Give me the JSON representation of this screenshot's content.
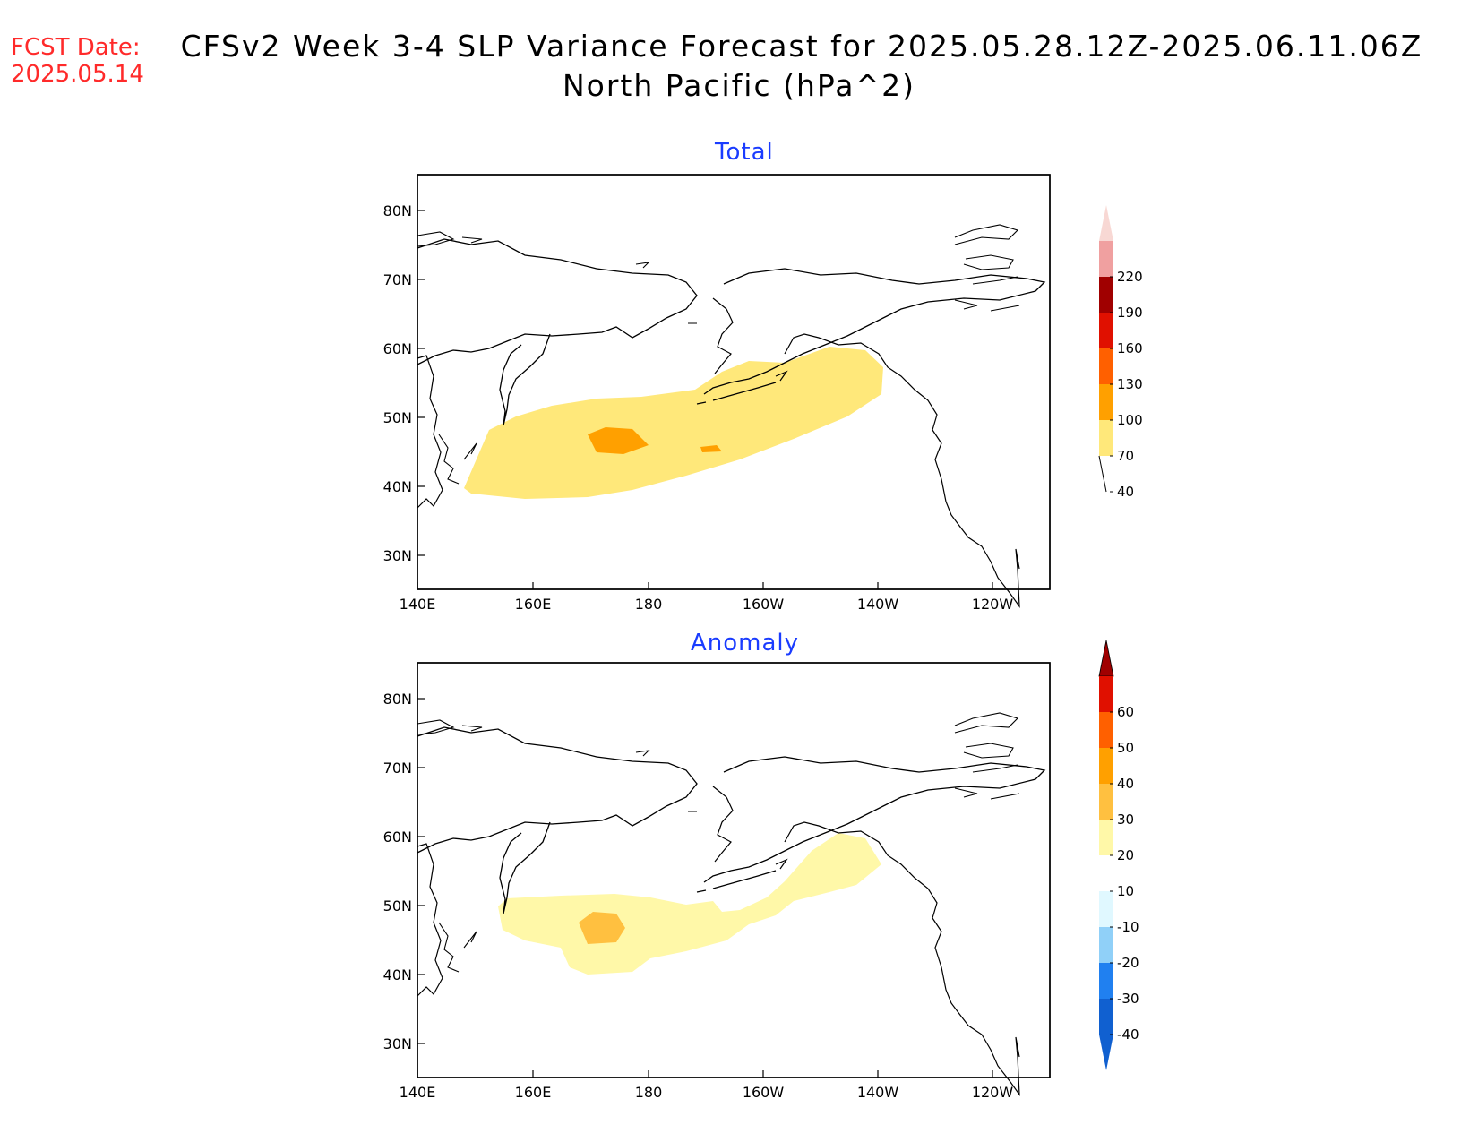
{
  "header": {
    "fcst_label": "FCST Date:",
    "fcst_date": "2025.05.14",
    "title_line1": "CFSv2 Week 3-4 SLP Variance Forecast for 2025.05.28.12Z-2025.06.11.06Z",
    "title_line2": "North Pacific (hPa^2)"
  },
  "map": {
    "lat_labels": [
      "80N",
      "70N",
      "60N",
      "50N",
      "40N",
      "30N"
    ],
    "lon_labels": [
      "140E",
      "160E",
      "180",
      "160W",
      "140W",
      "120W"
    ]
  },
  "panels": [
    {
      "title": "Total",
      "colorbar_labels": [
        "220",
        "190",
        "160",
        "130",
        "100",
        "70",
        "40"
      ],
      "colorbar_colors": [
        "#f8d8d4",
        "#f0a0a0",
        "#a00000",
        "#e01000",
        "#ff6000",
        "#ffa000",
        "#ffe87a"
      ]
    },
    {
      "title": "Anomaly",
      "colorbar_labels": [
        "60",
        "50",
        "40",
        "30",
        "20",
        "10",
        "-10",
        "-20",
        "-30",
        "-40"
      ],
      "colorbar_colors": [
        "#a00000",
        "#e01000",
        "#ff6000",
        "#ffa000",
        "#ffc040",
        "#fff8a8",
        "#ffffff",
        "#e0f8ff",
        "#90d0f8",
        "#2080f0",
        "#1060d0"
      ]
    }
  ],
  "colors": {
    "fcst_text": "#ff2a2a",
    "panel_title": "#1a3cff"
  }
}
